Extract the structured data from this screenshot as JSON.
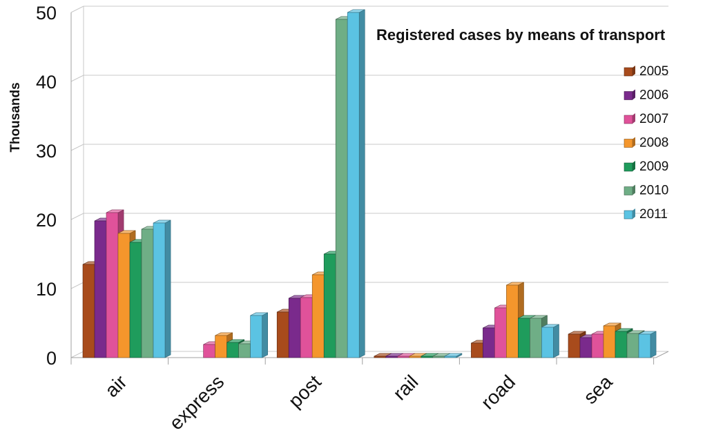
{
  "chart_data": {
    "type": "bar",
    "title": "Registered cases by means of transport",
    "ylabel": "Thousands",
    "xlabel": "",
    "categories": [
      "air",
      "express",
      "post",
      "rail",
      "road",
      "sea"
    ],
    "ylim": [
      0,
      50
    ],
    "yticks": [
      0,
      10,
      20,
      30,
      40,
      50
    ],
    "grid": true,
    "legend_position": "right",
    "style": "3d-clustered-columns",
    "series": [
      {
        "name": "2005",
        "color": "#a84b1c",
        "values": [
          13.5,
          0,
          6.6,
          0.2,
          2.1,
          3.4
        ]
      },
      {
        "name": "2006",
        "color": "#7a2a8c",
        "values": [
          19.8,
          0,
          8.6,
          0.2,
          4.3,
          2.9
        ]
      },
      {
        "name": "2007",
        "color": "#e0529a",
        "values": [
          21.0,
          1.9,
          8.7,
          0.2,
          7.2,
          3.4
        ]
      },
      {
        "name": "2008",
        "color": "#f4962c",
        "values": [
          18.0,
          3.2,
          12.0,
          0.2,
          10.5,
          4.6
        ]
      },
      {
        "name": "2009",
        "color": "#1f9c5c",
        "values": [
          16.7,
          2.2,
          15.0,
          0.2,
          5.7,
          3.8
        ]
      },
      {
        "name": "2010",
        "color": "#6fae86",
        "values": [
          18.6,
          2.0,
          49.0,
          0.2,
          5.7,
          3.5
        ]
      },
      {
        "name": "2011",
        "color": "#5bc3e3",
        "values": [
          19.5,
          6.1,
          50.0,
          0.2,
          4.4,
          3.4
        ]
      }
    ]
  }
}
